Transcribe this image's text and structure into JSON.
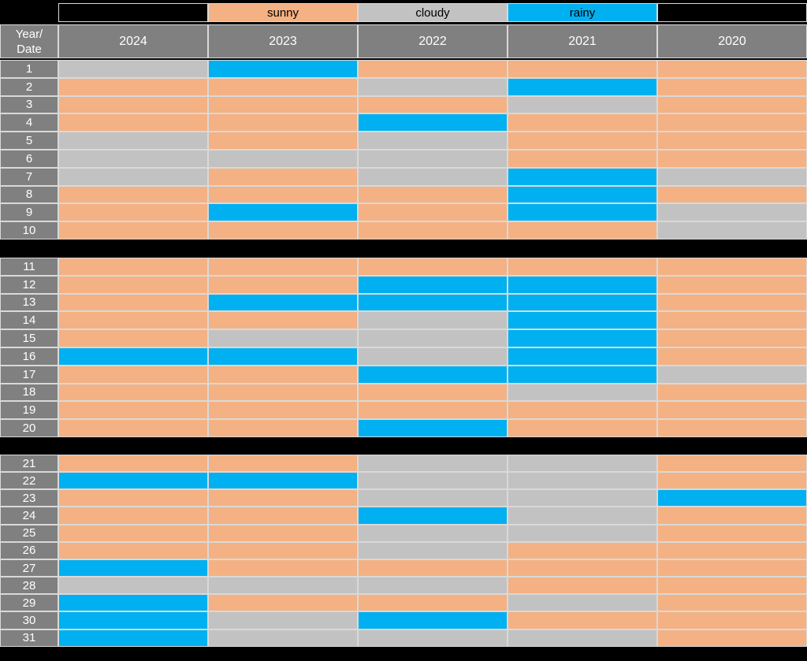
{
  "colors": {
    "sunny": "#F4B183",
    "cloudy": "#C2C2C2",
    "rainy": "#00B0F0",
    "axis_gray": "#808080",
    "grid_border": "#D9D9D9",
    "background": "#000000",
    "header_text": "#FFFFFF",
    "legend_text": "#000000"
  },
  "legend": {
    "items": [
      {
        "label": "",
        "color_key": "none"
      },
      {
        "label": "sunny",
        "color_key": "sunny"
      },
      {
        "label": "cloudy",
        "color_key": "cloudy"
      },
      {
        "label": "rainy",
        "color_key": "rainy"
      },
      {
        "label": "",
        "color_key": "none"
      }
    ]
  },
  "header": {
    "corner": "Year/\nDate",
    "years": [
      "2024",
      "2023",
      "2022",
      "2021",
      "2020"
    ]
  },
  "chart_data": {
    "type": "heatmap",
    "title": "",
    "x_categories": [
      "2024",
      "2023",
      "2022",
      "2021",
      "2020"
    ],
    "y_axis_label": "Year/Date",
    "y_categories": [
      "1",
      "2",
      "3",
      "4",
      "5",
      "6",
      "7",
      "8",
      "9",
      "10",
      "11",
      "12",
      "13",
      "14",
      "15",
      "16",
      "17",
      "18",
      "19",
      "20",
      "21",
      "22",
      "23",
      "24",
      "25",
      "26",
      "27",
      "28",
      "29",
      "30",
      "31"
    ],
    "legend_entries": [
      "sunny",
      "cloudy",
      "rainy"
    ],
    "legend_position": "top",
    "row_groups": [
      [
        1,
        10
      ],
      [
        11,
        20
      ],
      [
        21,
        31
      ]
    ],
    "values": [
      [
        "cloudy",
        "rainy",
        "sunny",
        "sunny",
        "sunny"
      ],
      [
        "sunny",
        "sunny",
        "cloudy",
        "rainy",
        "sunny"
      ],
      [
        "sunny",
        "sunny",
        "sunny",
        "cloudy",
        "sunny"
      ],
      [
        "sunny",
        "sunny",
        "rainy",
        "sunny",
        "sunny"
      ],
      [
        "cloudy",
        "sunny",
        "cloudy",
        "sunny",
        "sunny"
      ],
      [
        "cloudy",
        "cloudy",
        "cloudy",
        "sunny",
        "sunny"
      ],
      [
        "cloudy",
        "sunny",
        "cloudy",
        "rainy",
        "cloudy"
      ],
      [
        "sunny",
        "sunny",
        "sunny",
        "rainy",
        "sunny"
      ],
      [
        "sunny",
        "rainy",
        "sunny",
        "rainy",
        "cloudy"
      ],
      [
        "sunny",
        "sunny",
        "sunny",
        "sunny",
        "cloudy"
      ],
      [
        "sunny",
        "sunny",
        "sunny",
        "sunny",
        "sunny"
      ],
      [
        "sunny",
        "sunny",
        "rainy",
        "rainy",
        "sunny"
      ],
      [
        "sunny",
        "rainy",
        "rainy",
        "rainy",
        "sunny"
      ],
      [
        "sunny",
        "sunny",
        "cloudy",
        "rainy",
        "sunny"
      ],
      [
        "sunny",
        "cloudy",
        "cloudy",
        "rainy",
        "sunny"
      ],
      [
        "rainy",
        "rainy",
        "cloudy",
        "rainy",
        "sunny"
      ],
      [
        "sunny",
        "sunny",
        "rainy",
        "rainy",
        "cloudy"
      ],
      [
        "sunny",
        "sunny",
        "sunny",
        "cloudy",
        "sunny"
      ],
      [
        "sunny",
        "sunny",
        "sunny",
        "sunny",
        "sunny"
      ],
      [
        "sunny",
        "sunny",
        "rainy",
        "sunny",
        "sunny"
      ],
      [
        "sunny",
        "sunny",
        "cloudy",
        "cloudy",
        "sunny"
      ],
      [
        "rainy",
        "rainy",
        "cloudy",
        "cloudy",
        "sunny"
      ],
      [
        "sunny",
        "sunny",
        "cloudy",
        "cloudy",
        "rainy"
      ],
      [
        "sunny",
        "sunny",
        "rainy",
        "cloudy",
        "sunny"
      ],
      [
        "sunny",
        "sunny",
        "cloudy",
        "cloudy",
        "sunny"
      ],
      [
        "sunny",
        "sunny",
        "cloudy",
        "sunny",
        "sunny"
      ],
      [
        "rainy",
        "sunny",
        "sunny",
        "sunny",
        "sunny"
      ],
      [
        "cloudy",
        "cloudy",
        "cloudy",
        "sunny",
        "sunny"
      ],
      [
        "rainy",
        "sunny",
        "sunny",
        "cloudy",
        "sunny"
      ],
      [
        "rainy",
        "cloudy",
        "rainy",
        "sunny",
        "sunny"
      ],
      [
        "rainy",
        "cloudy",
        "cloudy",
        "cloudy",
        "sunny"
      ]
    ]
  }
}
